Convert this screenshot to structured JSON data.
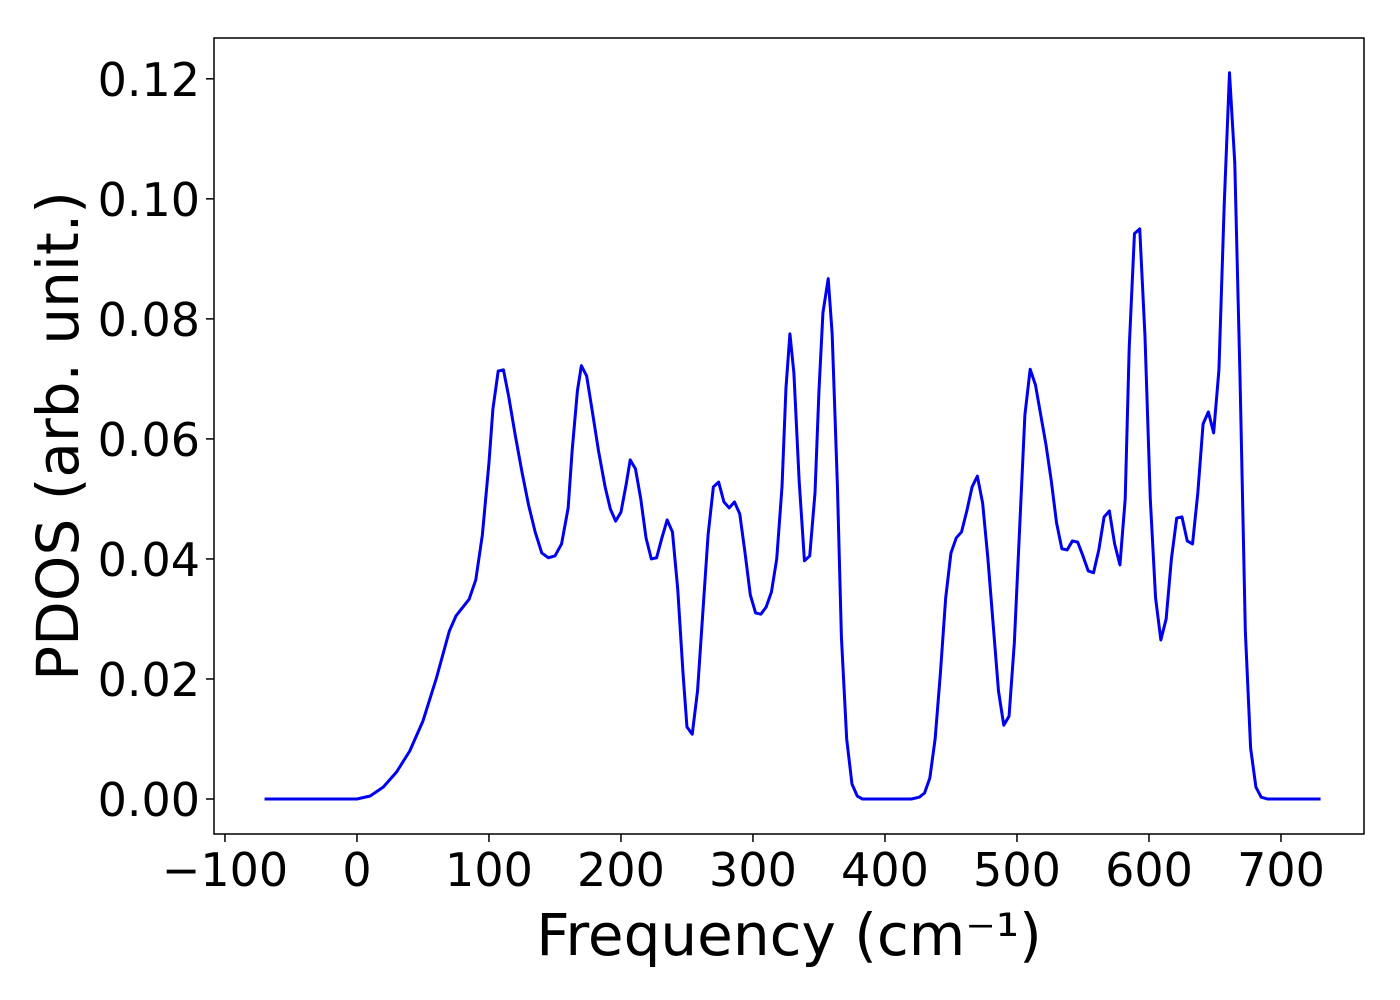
{
  "chart_data": {
    "type": "line",
    "x_label": "Frequency (cm⁻¹)",
    "y_label": "PDOS (arb. unit.)",
    "xlim": [
      -108.3,
      762.9
    ],
    "ylim": [
      -0.00583,
      0.1268
    ],
    "xticks": [
      {
        "value": -100,
        "label": "−100"
      },
      0,
      100,
      200,
      300,
      400,
      500,
      600,
      700
    ],
    "yticks": [
      {
        "value": 0,
        "label": "0.00"
      },
      {
        "value": 0.02,
        "label": "0.02"
      },
      {
        "value": 0.04,
        "label": "0.04"
      },
      {
        "value": 0.06,
        "label": "0.06"
      },
      {
        "value": 0.08,
        "label": "0.08"
      },
      {
        "value": 0.1,
        "label": "0.10"
      },
      {
        "value": 0.12,
        "label": "0.12"
      }
    ],
    "grid": false,
    "x": [
      -70,
      0,
      10,
      20,
      30,
      40,
      50,
      60,
      70,
      75,
      85,
      90,
      95,
      100,
      103,
      107,
      111,
      115,
      120,
      125,
      130,
      135,
      140,
      145,
      150,
      155,
      160,
      163,
      167,
      170,
      174,
      178,
      183,
      188,
      192,
      196,
      200,
      204,
      207,
      211,
      215,
      219,
      223,
      227,
      231,
      235,
      239,
      243,
      247,
      250,
      254,
      258,
      262,
      266,
      270,
      274,
      278,
      282,
      286,
      290,
      294,
      298,
      302,
      306,
      310,
      314,
      318,
      322,
      325,
      328,
      331,
      335,
      339,
      343,
      347,
      350,
      353,
      357,
      360,
      364,
      367,
      371,
      375,
      379,
      383,
      420,
      426,
      430,
      434,
      438,
      442,
      446,
      450,
      454,
      458,
      462,
      466,
      470,
      474,
      478,
      482,
      486,
      490,
      494,
      498,
      502,
      506,
      510,
      514,
      518,
      522,
      526,
      530,
      534,
      538,
      542,
      546,
      550,
      554,
      558,
      562,
      566,
      570,
      574,
      578,
      582,
      585,
      589,
      593,
      597,
      601,
      605,
      609,
      613,
      617,
      621,
      625,
      629,
      633,
      637,
      641,
      645,
      649,
      653,
      657,
      661,
      665,
      669,
      673,
      677,
      681,
      685,
      690,
      730
    ],
    "series": [
      {
        "name": "PDOS",
        "color": "#0000ee",
        "values": [
          0,
          0,
          0.0005,
          0.002,
          0.0045,
          0.008,
          0.013,
          0.02,
          0.028,
          0.0305,
          0.0333,
          0.0365,
          0.044,
          0.056,
          0.065,
          0.0713,
          0.0715,
          0.067,
          0.0605,
          0.0545,
          0.049,
          0.0445,
          0.041,
          0.0402,
          0.0405,
          0.0425,
          0.0485,
          0.058,
          0.068,
          0.0722,
          0.0705,
          0.065,
          0.058,
          0.052,
          0.0483,
          0.0463,
          0.0478,
          0.0525,
          0.0565,
          0.055,
          0.05,
          0.0435,
          0.04,
          0.0402,
          0.0435,
          0.0465,
          0.0445,
          0.035,
          0.021,
          0.012,
          0.0108,
          0.018,
          0.031,
          0.044,
          0.052,
          0.0528,
          0.0495,
          0.0485,
          0.0495,
          0.0475,
          0.041,
          0.034,
          0.031,
          0.0308,
          0.032,
          0.0345,
          0.04,
          0.052,
          0.0685,
          0.0775,
          0.071,
          0.053,
          0.0397,
          0.0405,
          0.051,
          0.068,
          0.081,
          0.0867,
          0.0775,
          0.052,
          0.027,
          0.01,
          0.0025,
          0.0005,
          0,
          0,
          0.0003,
          0.001,
          0.0035,
          0.01,
          0.021,
          0.0335,
          0.041,
          0.0435,
          0.0445,
          0.048,
          0.052,
          0.0538,
          0.0493,
          0.04,
          0.029,
          0.018,
          0.0123,
          0.0138,
          0.026,
          0.045,
          0.064,
          0.0716,
          0.069,
          0.064,
          0.059,
          0.053,
          0.046,
          0.0417,
          0.0415,
          0.043,
          0.0428,
          0.0405,
          0.038,
          0.0377,
          0.0415,
          0.047,
          0.048,
          0.0425,
          0.039,
          0.05,
          0.075,
          0.0942,
          0.095,
          0.077,
          0.05,
          0.0335,
          0.0265,
          0.03,
          0.04,
          0.0468,
          0.047,
          0.043,
          0.0425,
          0.051,
          0.0625,
          0.0645,
          0.061,
          0.0715,
          0.099,
          0.121,
          0.106,
          0.07,
          0.028,
          0.0085,
          0.002,
          0.0003,
          0,
          0
        ]
      }
    ]
  }
}
